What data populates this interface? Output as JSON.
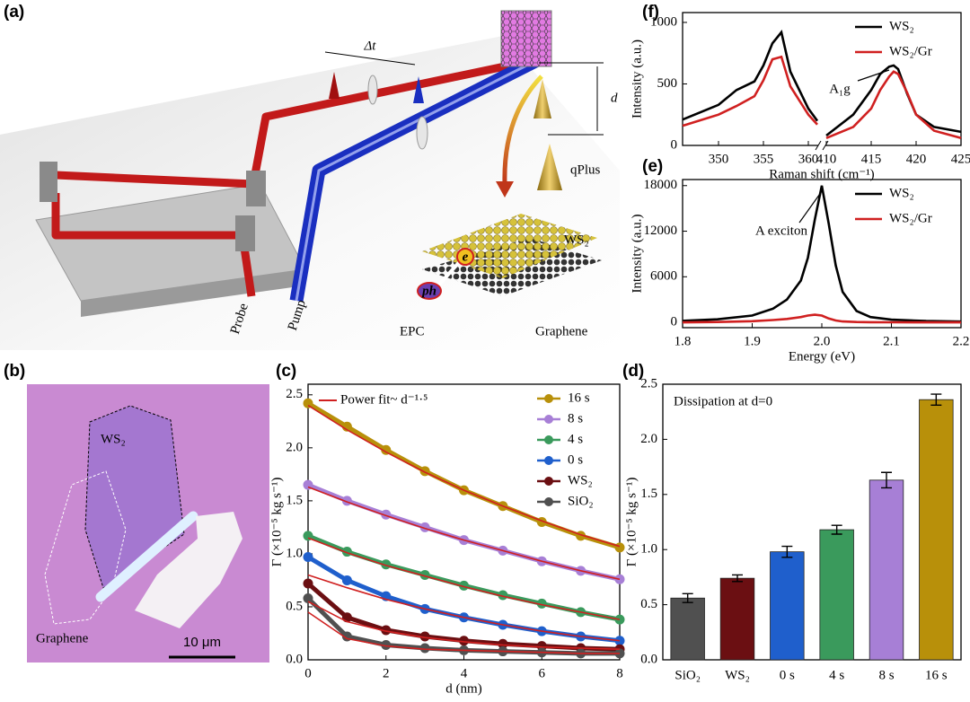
{
  "schematic": {
    "panel": "(a)",
    "delta_t": "Δt",
    "d": "d",
    "qplus": "qPlus",
    "ws2": "WS₂",
    "e": "e",
    "ph": "ph",
    "epc": "EPC",
    "graphene": "Graphene",
    "probe": "Probe",
    "pump": "Pump"
  },
  "micrograph": {
    "panel": "(b)",
    "ws2": "WS₂",
    "graphene": "Graphene",
    "scale": "10 μm"
  },
  "chart_data": [
    {
      "type": "line",
      "panel": "(c)",
      "markers": true,
      "xlabel": "d (nm)",
      "ylabel": "Γ (×10⁻⁵ kg s⁻¹)",
      "x": [
        0,
        1,
        2,
        3,
        4,
        5,
        6,
        7,
        8
      ],
      "xlim": [
        0,
        8
      ],
      "xticks": [
        0,
        2,
        4,
        6,
        8
      ],
      "ylim": [
        0,
        2.6
      ],
      "yticks": [
        {
          "value": 0,
          "label": "0.0"
        },
        0.5,
        {
          "value": 1,
          "label": "1.0"
        },
        1.5,
        {
          "value": 2,
          "label": "2.0"
        },
        2.5
      ],
      "series": [
        {
          "name": "16 s",
          "color": "#b8900a",
          "values": [
            2.42,
            2.2,
            1.98,
            1.78,
            1.6,
            1.45,
            1.3,
            1.17,
            1.06
          ]
        },
        {
          "name": "8 s",
          "color": "#a77fd6",
          "values": [
            1.65,
            1.5,
            1.37,
            1.25,
            1.13,
            1.03,
            0.93,
            0.84,
            0.76
          ]
        },
        {
          "name": "4 s",
          "color": "#3a9a5c",
          "values": [
            1.17,
            1.02,
            0.9,
            0.8,
            0.7,
            0.61,
            0.53,
            0.45,
            0.38
          ]
        },
        {
          "name": "0 s",
          "color": "#1f5fcc",
          "values": [
            0.97,
            0.75,
            0.6,
            0.48,
            0.4,
            0.33,
            0.27,
            0.22,
            0.18
          ]
        },
        {
          "name": "WS₂",
          "color": "#6b0f12",
          "values": [
            0.72,
            0.4,
            0.28,
            0.22,
            0.18,
            0.15,
            0.13,
            0.11,
            0.1
          ]
        },
        {
          "name": "SiO₂",
          "color": "#505050",
          "values": [
            0.58,
            0.22,
            0.14,
            0.11,
            0.09,
            0.08,
            0.07,
            0.06,
            0.06
          ]
        }
      ],
      "fit": {
        "name": "Power fit~ d⁻¹·⁵",
        "color": "#d02020",
        "curves": [
          [
            2.4,
            2.17,
            1.96,
            1.77,
            1.6,
            1.45,
            1.31,
            1.18,
            1.07
          ],
          [
            1.63,
            1.49,
            1.36,
            1.24,
            1.13,
            1.03,
            0.93,
            0.84,
            0.76
          ],
          [
            1.15,
            1.01,
            0.89,
            0.79,
            0.69,
            0.6,
            0.52,
            0.45,
            0.38
          ],
          [
            0.8,
            0.68,
            0.57,
            0.48,
            0.4,
            0.33,
            0.27,
            0.22,
            0.18
          ],
          [
            0.55,
            0.36,
            0.27,
            0.21,
            0.17,
            0.14,
            0.12,
            0.11,
            0.1
          ],
          [
            0.45,
            0.2,
            0.13,
            0.1,
            0.09,
            0.08,
            0.07,
            0.06,
            0.06
          ]
        ]
      }
    },
    {
      "type": "bar",
      "panel": "(d)",
      "annotation": "Dissipation at d=0",
      "ylabel": "Γ (×10⁻⁵ kg s⁻¹)",
      "categories": [
        "SiO₂",
        "WS₂",
        "0 s",
        "4 s",
        "8 s",
        "16 s"
      ],
      "values": [
        0.56,
        0.74,
        0.98,
        1.18,
        1.63,
        2.36
      ],
      "errors": [
        0.04,
        0.03,
        0.05,
        0.04,
        0.07,
        0.05
      ],
      "colors": [
        "#505050",
        "#6b0f12",
        "#1f5fcc",
        "#3a9a5c",
        "#a77fd6",
        "#b8900a"
      ],
      "ylim": [
        0,
        2.5
      ],
      "yticks": [
        {
          "value": 0,
          "label": "0.0"
        },
        0.5,
        {
          "value": 1,
          "label": "1.0"
        },
        1.5,
        {
          "value": 2,
          "label": "2.0"
        },
        2.5
      ]
    },
    {
      "type": "line",
      "panel": "(e)",
      "annotation": "A exciton",
      "xlabel": "Energy (eV)",
      "ylabel": "Intensity (a.u.)",
      "x": [
        1.8,
        1.85,
        1.9,
        1.93,
        1.95,
        1.97,
        1.98,
        1.99,
        2.0,
        2.01,
        2.02,
        2.03,
        2.05,
        2.07,
        2.1,
        2.15,
        2.2
      ],
      "xlim": [
        1.8,
        2.2
      ],
      "xticks": [
        1.8,
        1.9,
        {
          "value": 2,
          "label": "2.0"
        },
        2.1,
        2.2
      ],
      "ylim": [
        -700,
        18800
      ],
      "yticks": [
        0,
        6000,
        12000,
        18000
      ],
      "series": [
        {
          "name": "WS₂",
          "color": "#000000",
          "values": [
            200,
            400,
            900,
            1800,
            3000,
            5500,
            8500,
            13500,
            18000,
            13000,
            7500,
            4000,
            1500,
            700,
            350,
            180,
            100
          ]
        },
        {
          "name": "WS₂/Gr",
          "color": "#d02020",
          "values": [
            0,
            50,
            150,
            300,
            450,
            700,
            900,
            1000,
            900,
            500,
            250,
            120,
            50,
            20,
            10,
            0,
            0
          ]
        }
      ]
    },
    {
      "type": "line",
      "panel": "(f)",
      "annotation": "A₁g",
      "xlabel": "Raman shift (cm⁻¹)",
      "ylabel": "Intensity (a.u.)",
      "x": [
        346,
        350,
        352,
        354,
        355,
        356,
        357,
        358,
        360,
        361,
        385,
        410,
        413,
        415,
        416,
        417,
        417.5,
        418,
        419,
        420,
        422,
        425
      ],
      "xlim": [
        346,
        425
      ],
      "x_break": [
        361,
        410
      ],
      "xticks": [
        350,
        355,
        360,
        410,
        415,
        420,
        425
      ],
      "ylim": [
        0,
        1080
      ],
      "yticks": [
        0,
        500,
        1000
      ],
      "series": [
        {
          "name": "WS₂",
          "color": "#000000",
          "values": [
            210,
            330,
            450,
            520,
            650,
            830,
            920,
            600,
            300,
            200,
            null,
            80,
            250,
            450,
            580,
            640,
            650,
            620,
            420,
            250,
            150,
            110
          ]
        },
        {
          "name": "WS₂/Gr",
          "color": "#d02020",
          "values": [
            160,
            250,
            320,
            400,
            530,
            700,
            720,
            480,
            250,
            170,
            null,
            60,
            150,
            300,
            450,
            560,
            600,
            580,
            430,
            250,
            120,
            60
          ]
        }
      ]
    }
  ]
}
